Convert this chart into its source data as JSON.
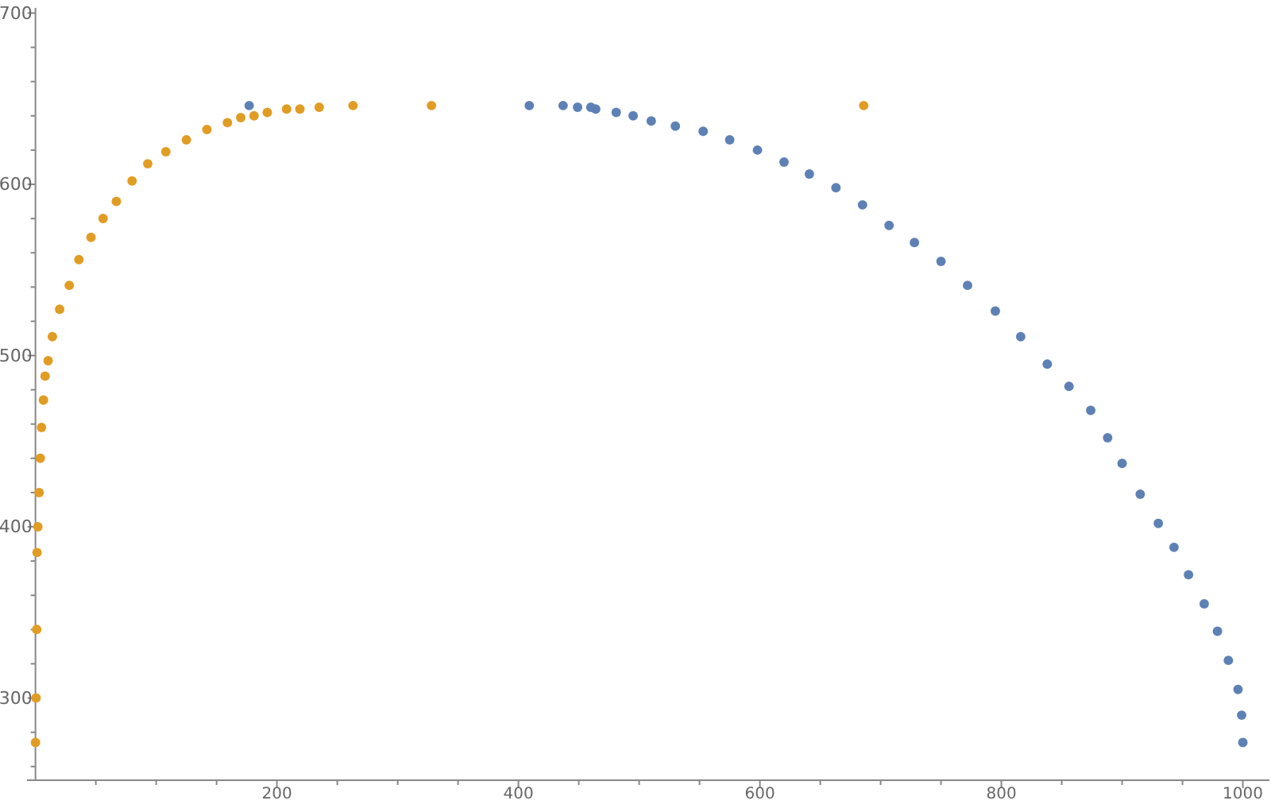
{
  "chart_data": {
    "type": "scatter",
    "marker": "circle",
    "grid": false,
    "xlim": [
      -7,
      1022
    ],
    "ylim": [
      252,
      703
    ],
    "xticks": [
      {
        "value": 50,
        "label": null
      },
      {
        "value": 100,
        "label": null
      },
      {
        "value": 150,
        "label": null
      },
      200,
      {
        "value": 250,
        "label": null
      },
      {
        "value": 300,
        "label": null
      },
      {
        "value": 350,
        "label": null
      },
      400,
      {
        "value": 450,
        "label": null
      },
      {
        "value": 500,
        "label": null
      },
      {
        "value": 550,
        "label": null
      },
      600,
      {
        "value": 650,
        "label": null
      },
      {
        "value": 700,
        "label": null
      },
      {
        "value": 750,
        "label": null
      },
      800,
      {
        "value": 850,
        "label": null
      },
      {
        "value": 900,
        "label": null
      },
      {
        "value": 950,
        "label": null
      },
      1000
    ],
    "yticks": [
      {
        "value": 260,
        "label": null
      },
      {
        "value": 280,
        "label": null
      },
      300,
      {
        "value": 320,
        "label": null
      },
      {
        "value": 340,
        "label": null
      },
      {
        "value": 360,
        "label": null
      },
      {
        "value": 380,
        "label": null
      },
      400,
      {
        "value": 420,
        "label": null
      },
      {
        "value": 440,
        "label": null
      },
      {
        "value": 460,
        "label": null
      },
      {
        "value": 480,
        "label": null
      },
      500,
      {
        "value": 520,
        "label": null
      },
      {
        "value": 540,
        "label": null
      },
      {
        "value": 560,
        "label": null
      },
      {
        "value": 580,
        "label": null
      },
      600,
      {
        "value": 620,
        "label": null
      },
      {
        "value": 640,
        "label": null
      },
      {
        "value": 660,
        "label": null
      },
      {
        "value": 680,
        "label": null
      },
      700
    ],
    "series": [
      {
        "color": "#5e81b5",
        "x": [
          177,
          409,
          437,
          449,
          460,
          464,
          481,
          495,
          510,
          530,
          553,
          575,
          598,
          620,
          641,
          663,
          685,
          707,
          728,
          750,
          772,
          795,
          816,
          838,
          856,
          874,
          888,
          900,
          915,
          930,
          943,
          955,
          968,
          979,
          988,
          996,
          999,
          1000
        ],
        "values": [
          646,
          646,
          646,
          645,
          645,
          644,
          642,
          640,
          637,
          634,
          631,
          626,
          620,
          613,
          606,
          598,
          588,
          576,
          566,
          555,
          541,
          526,
          511,
          495,
          482,
          468,
          452,
          437,
          419,
          402,
          388,
          372,
          355,
          339,
          322,
          305,
          290,
          274
        ]
      },
      {
        "color": "#e19c24",
        "x": [
          0,
          0.5,
          1,
          1.3,
          2,
          3,
          4,
          5,
          6.6,
          8,
          10.5,
          14,
          20,
          28,
          36,
          46,
          56,
          67,
          80,
          93,
          108,
          125,
          142,
          159,
          170,
          181,
          192,
          208,
          219,
          235,
          263,
          328,
          686
        ],
        "values": [
          274,
          300,
          340,
          385,
          400,
          420,
          440,
          458,
          474,
          488,
          497,
          511,
          527,
          541,
          556,
          569,
          580,
          590,
          602,
          612,
          619,
          626,
          632,
          636,
          639,
          640,
          642,
          644,
          644,
          645,
          646,
          646,
          646
        ]
      }
    ]
  }
}
